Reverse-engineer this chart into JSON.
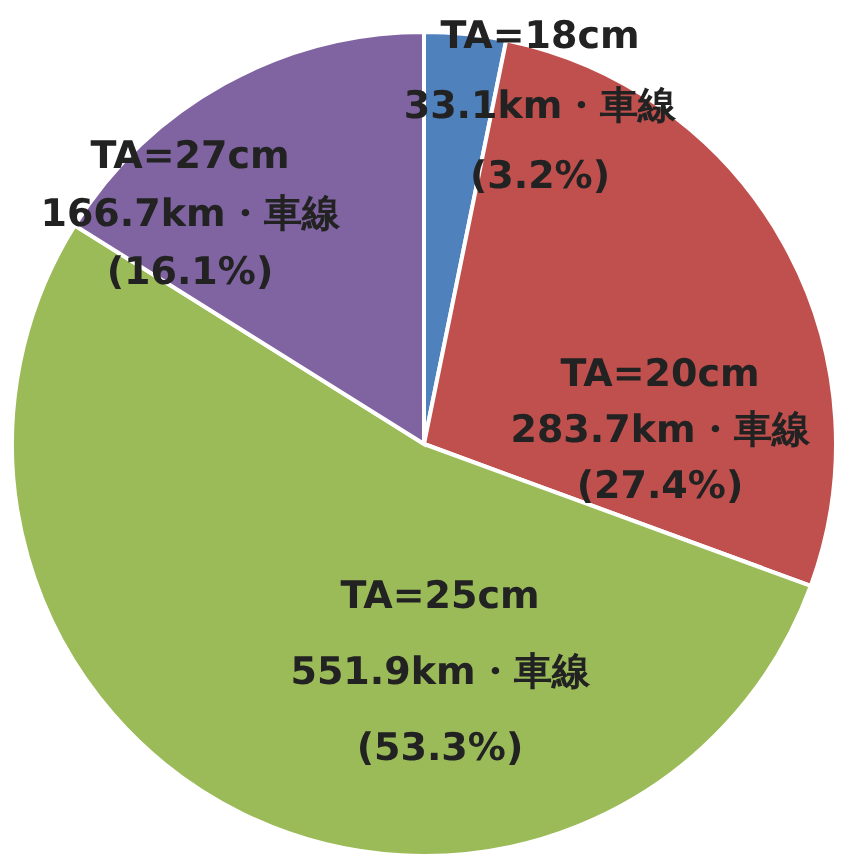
{
  "chart_data": {
    "type": "pie",
    "categories": [
      "TA=18cm",
      "TA=20cm",
      "TA=25cm",
      "TA=27cm"
    ],
    "values": [
      33.1,
      283.7,
      551.9,
      166.7
    ],
    "colors": [
      "#4f81bd",
      "#c0504d",
      "#9bbb59",
      "#8064a2"
    ],
    "value_labels": [
      "33.1km・車線\n(3.2%)",
      "283.7km・車線\n(27.4%)",
      "551.9km・車線\n(53.3%)",
      "166.7km・車線\n(16.1%)"
    ]
  }
}
